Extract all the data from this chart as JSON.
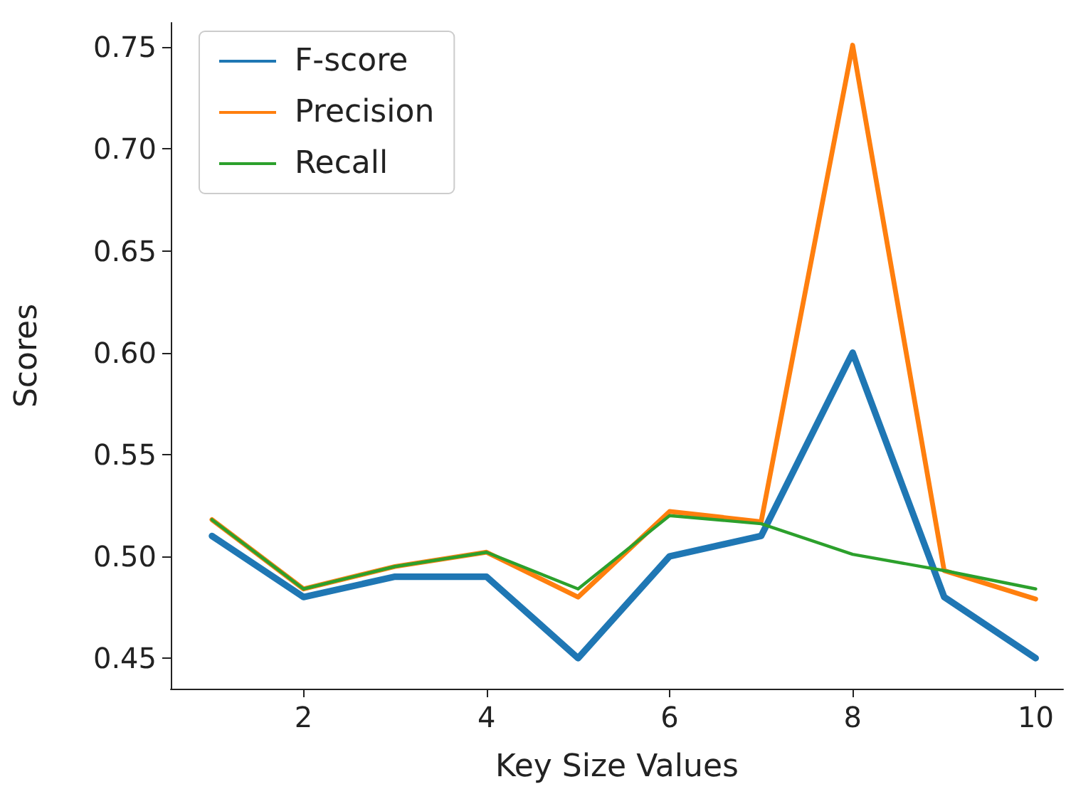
{
  "chart_data": {
    "type": "line",
    "xlabel": "Key Size Values",
    "ylabel": "Scores",
    "x": [
      1,
      2,
      3,
      4,
      5,
      6,
      7,
      8,
      9,
      10
    ],
    "series": [
      {
        "name": "F-score",
        "color": "#1f77b4",
        "values": [
          0.51,
          0.48,
          0.49,
          0.49,
          0.45,
          0.5,
          0.51,
          0.6,
          0.48,
          0.45
        ]
      },
      {
        "name": "Precision",
        "color": "#ff7f0e",
        "values": [
          0.518,
          0.484,
          0.495,
          0.502,
          0.48,
          0.522,
          0.517,
          0.751,
          0.493,
          0.479
        ]
      },
      {
        "name": "Recall",
        "color": "#2ca02c",
        "values": [
          0.518,
          0.484,
          0.495,
          0.502,
          0.484,
          0.52,
          0.516,
          0.501,
          0.493,
          0.484
        ]
      }
    ],
    "xlim": [
      0.55,
      10.3
    ],
    "xticks": [
      2,
      4,
      6,
      8,
      10
    ],
    "ylim": [
      0.435,
      0.762
    ],
    "yticks": [
      {
        "value": 0.45,
        "label": "0.45"
      },
      {
        "value": 0.5,
        "label": "0.50"
      },
      {
        "value": 0.55,
        "label": "0.55"
      },
      {
        "value": 0.6,
        "label": "0.60"
      },
      {
        "value": 0.65,
        "label": "0.65"
      },
      {
        "value": 0.7,
        "label": "0.70"
      },
      {
        "value": 0.75,
        "label": "0.75"
      }
    ],
    "grid": false,
    "legend": "top left",
    "marker": "none",
    "line_style": "solid"
  }
}
